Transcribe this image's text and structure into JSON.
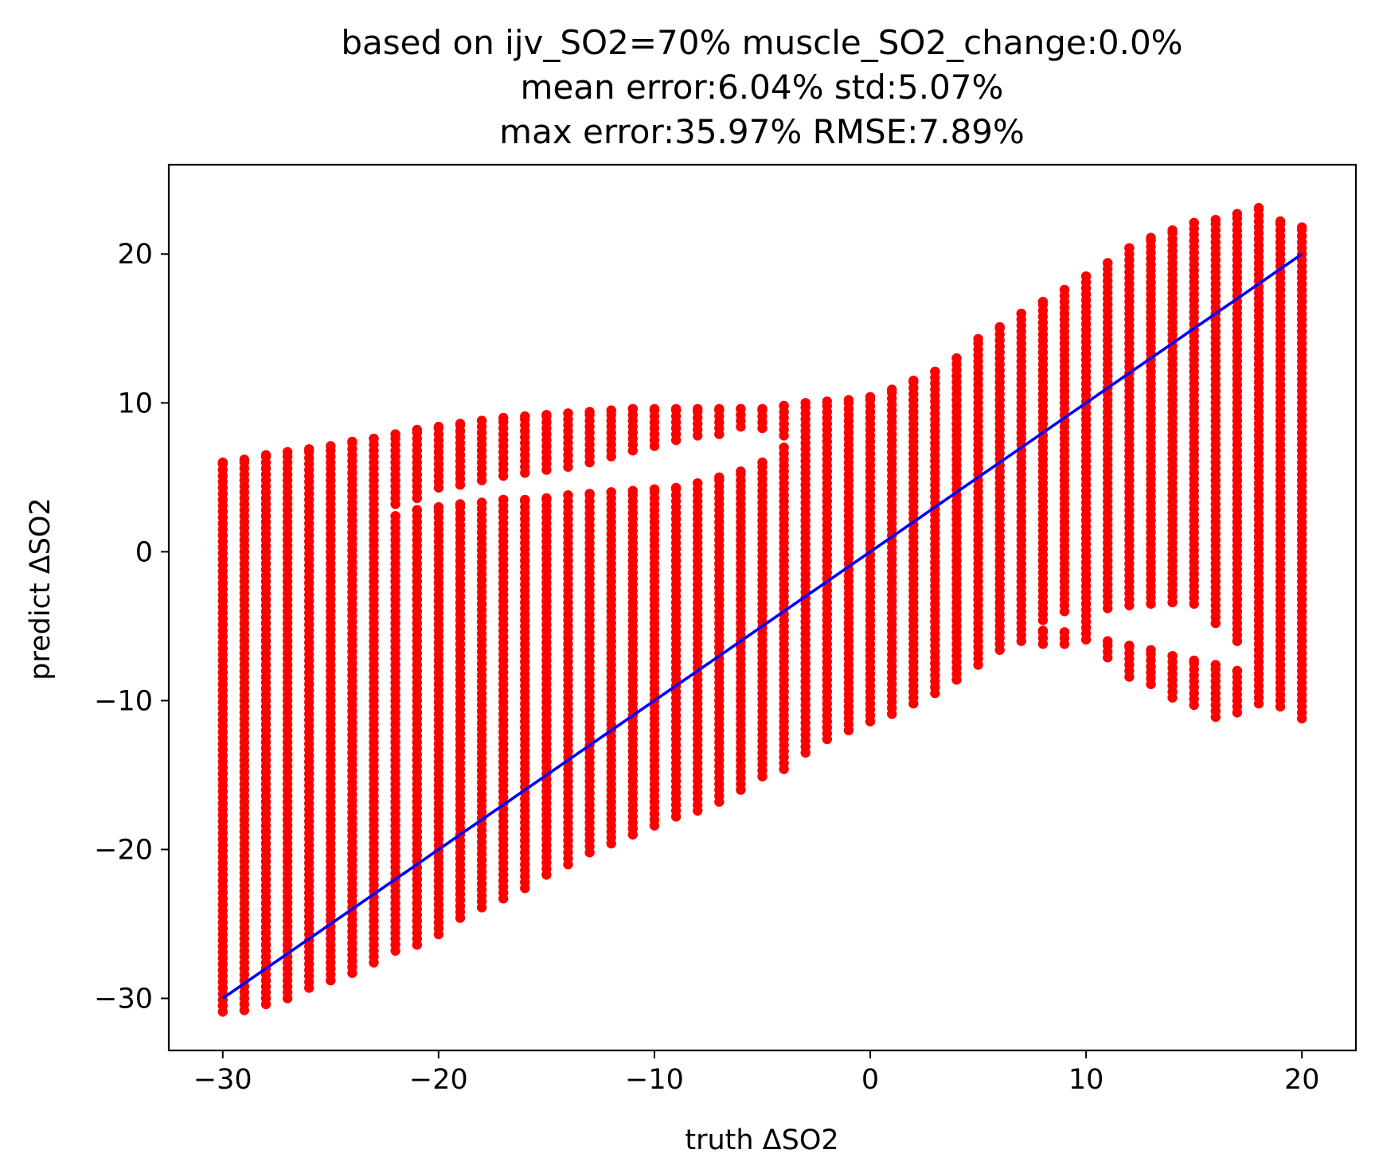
{
  "chart_data": {
    "type": "scatter",
    "title_lines": [
      "based on ijv_SO2=70% muscle_SO2_change:0.0%",
      "mean error:6.04% std:5.07%",
      "max error:35.97% RMSE:7.89%"
    ],
    "xlabel": "truth ΔSO2",
    "ylabel": "predict ΔSO2",
    "xlim": [
      -32.5,
      22.5
    ],
    "ylim": [
      -33.5,
      26
    ],
    "xticks": [
      -30,
      -20,
      -10,
      0,
      10,
      20
    ],
    "xtick_labels": [
      "−30",
      "−20",
      "−10",
      "0",
      "10",
      "20"
    ],
    "yticks": [
      -30,
      -20,
      -10,
      0,
      10,
      20
    ],
    "ytick_labels": [
      "−30",
      "−20",
      "−10",
      "0",
      "10",
      "20"
    ],
    "grid": false,
    "legend": "none",
    "series": [
      {
        "role": "prediction points",
        "color": "#ff0000",
        "marker": "dot",
        "columns": [
          {
            "x": -30,
            "ranges": [
              [
                -30.9,
                6.0
              ]
            ]
          },
          {
            "x": -29,
            "ranges": [
              [
                -30.8,
                6.2
              ]
            ]
          },
          {
            "x": -28,
            "ranges": [
              [
                -30.4,
                6.5
              ]
            ]
          },
          {
            "x": -27,
            "ranges": [
              [
                -30.0,
                6.7
              ]
            ]
          },
          {
            "x": -26,
            "ranges": [
              [
                -29.3,
                6.9
              ]
            ]
          },
          {
            "x": -25,
            "ranges": [
              [
                -28.8,
                7.1
              ]
            ]
          },
          {
            "x": -24,
            "ranges": [
              [
                -28.3,
                7.4
              ]
            ]
          },
          {
            "x": -23,
            "ranges": [
              [
                -27.6,
                7.6
              ]
            ]
          },
          {
            "x": -22,
            "ranges": [
              [
                -26.8,
                2.4
              ],
              [
                3.2,
                7.9
              ]
            ]
          },
          {
            "x": -21,
            "ranges": [
              [
                -26.4,
                2.8
              ],
              [
                3.6,
                8.2
              ]
            ]
          },
          {
            "x": -20,
            "ranges": [
              [
                -25.7,
                3.0
              ],
              [
                4.3,
                8.4
              ]
            ]
          },
          {
            "x": -19,
            "ranges": [
              [
                -24.6,
                3.2
              ],
              [
                4.5,
                8.6
              ]
            ]
          },
          {
            "x": -18,
            "ranges": [
              [
                -23.9,
                3.3
              ],
              [
                4.8,
                8.8
              ]
            ]
          },
          {
            "x": -17,
            "ranges": [
              [
                -23.3,
                3.5
              ],
              [
                5.1,
                9.0
              ]
            ]
          },
          {
            "x": -16,
            "ranges": [
              [
                -22.6,
                3.5
              ],
              [
                5.3,
                9.1
              ]
            ]
          },
          {
            "x": -15,
            "ranges": [
              [
                -21.7,
                3.6
              ],
              [
                5.5,
                9.2
              ]
            ]
          },
          {
            "x": -14,
            "ranges": [
              [
                -21.0,
                3.8
              ],
              [
                5.7,
                9.3
              ]
            ]
          },
          {
            "x": -13,
            "ranges": [
              [
                -20.2,
                3.9
              ],
              [
                6.0,
                9.4
              ]
            ]
          },
          {
            "x": -12,
            "ranges": [
              [
                -19.6,
                4.0
              ],
              [
                6.4,
                9.5
              ]
            ]
          },
          {
            "x": -11,
            "ranges": [
              [
                -19.0,
                4.1
              ],
              [
                6.8,
                9.6
              ]
            ]
          },
          {
            "x": -10,
            "ranges": [
              [
                -18.4,
                4.2
              ],
              [
                7.1,
                9.6
              ]
            ]
          },
          {
            "x": -9,
            "ranges": [
              [
                -17.8,
                4.3
              ],
              [
                7.5,
                9.6
              ]
            ]
          },
          {
            "x": -8,
            "ranges": [
              [
                -17.4,
                4.6
              ],
              [
                7.8,
                9.6
              ]
            ]
          },
          {
            "x": -7,
            "ranges": [
              [
                -16.8,
                5.0
              ],
              [
                7.9,
                9.6
              ]
            ]
          },
          {
            "x": -6,
            "ranges": [
              [
                -16.0,
                5.4
              ],
              [
                8.4,
                9.6
              ]
            ]
          },
          {
            "x": -5,
            "ranges": [
              [
                -15.1,
                6.0
              ],
              [
                8.3,
                9.6
              ]
            ]
          },
          {
            "x": -4,
            "ranges": [
              [
                -14.6,
                7.0
              ],
              [
                7.8,
                9.8
              ]
            ]
          },
          {
            "x": -3,
            "ranges": [
              [
                -13.5,
                10.0
              ]
            ]
          },
          {
            "x": -2,
            "ranges": [
              [
                -12.6,
                10.1
              ]
            ]
          },
          {
            "x": -1,
            "ranges": [
              [
                -12.0,
                10.2
              ]
            ]
          },
          {
            "x": 0,
            "ranges": [
              [
                -11.4,
                10.4
              ]
            ]
          },
          {
            "x": 1,
            "ranges": [
              [
                -10.9,
                10.9
              ]
            ]
          },
          {
            "x": 2,
            "ranges": [
              [
                -10.2,
                11.5
              ]
            ]
          },
          {
            "x": 3,
            "ranges": [
              [
                -9.5,
                12.1
              ]
            ]
          },
          {
            "x": 4,
            "ranges": [
              [
                -8.6,
                13.0
              ]
            ]
          },
          {
            "x": 5,
            "ranges": [
              [
                -7.6,
                14.3
              ]
            ]
          },
          {
            "x": 6,
            "ranges": [
              [
                -6.6,
                15.1
              ]
            ]
          },
          {
            "x": 7,
            "ranges": [
              [
                -6.0,
                16.0
              ]
            ]
          },
          {
            "x": 8,
            "ranges": [
              [
                -4.6,
                16.8
              ],
              [
                -6.2,
                -5.3
              ]
            ]
          },
          {
            "x": 9,
            "ranges": [
              [
                -4.0,
                17.6
              ],
              [
                -6.2,
                -5.4
              ]
            ]
          },
          {
            "x": 10,
            "ranges": [
              [
                -5.9,
                18.5
              ]
            ]
          },
          {
            "x": 11,
            "ranges": [
              [
                -3.8,
                19.4
              ],
              [
                -7.1,
                -6.0
              ]
            ]
          },
          {
            "x": 12,
            "ranges": [
              [
                -3.6,
                20.4
              ],
              [
                -8.4,
                -6.3
              ]
            ]
          },
          {
            "x": 13,
            "ranges": [
              [
                -3.5,
                21.1
              ],
              [
                -8.9,
                -6.6
              ]
            ]
          },
          {
            "x": 14,
            "ranges": [
              [
                -3.4,
                21.6
              ],
              [
                -9.8,
                -7.0
              ]
            ]
          },
          {
            "x": 15,
            "ranges": [
              [
                -3.5,
                22.1
              ],
              [
                -10.3,
                -7.3
              ]
            ]
          },
          {
            "x": 16,
            "ranges": [
              [
                -4.8,
                22.3
              ],
              [
                -11.1,
                -7.6
              ]
            ]
          },
          {
            "x": 17,
            "ranges": [
              [
                -6.0,
                22.7
              ],
              [
                -10.8,
                -8.0
              ]
            ]
          },
          {
            "x": 18,
            "ranges": [
              [
                -10.2,
                23.1
              ]
            ]
          },
          {
            "x": 19,
            "ranges": [
              [
                -10.4,
                22.2
              ]
            ]
          },
          {
            "x": 20,
            "ranges": [
              [
                -11.2,
                21.8
              ]
            ]
          }
        ]
      },
      {
        "role": "identity line",
        "color": "#0000ff",
        "type": "line",
        "x": [
          -30,
          20
        ],
        "y": [
          -30,
          20
        ]
      }
    ]
  }
}
